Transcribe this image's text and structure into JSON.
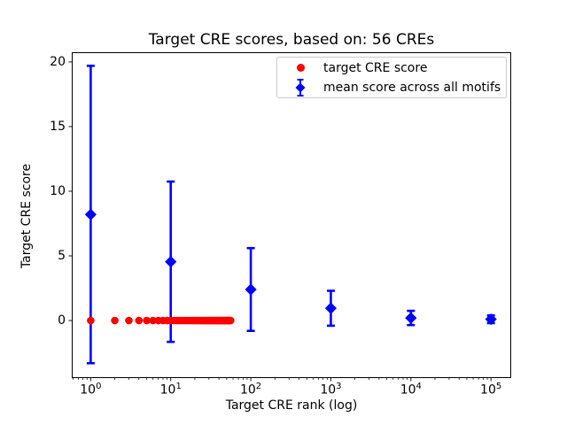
{
  "figure": {
    "title": "Target CRE scores, based on: 56 CREs",
    "x_axis_label": "Target CRE rank (log)",
    "y_axis_label": "Target CRE score"
  },
  "legend": {
    "items": [
      {
        "label": "target CRE score",
        "marker": "circle",
        "color": "#ff0000"
      },
      {
        "label": "mean score across all motifs",
        "marker": "diamond-with-errorbar",
        "color": "#0000ff"
      }
    ]
  },
  "colors": {
    "target_series": "#ff0000",
    "mean_series": "#0000ff",
    "spine": "#000000",
    "legend_border": "#cccccc",
    "background": "#ffffff"
  },
  "chart_data": {
    "type": "scatter",
    "title": "Target CRE scores, based on: 56 CREs",
    "xlabel": "Target CRE rank (log)",
    "ylabel": "Target CRE score",
    "x_scale": "log",
    "xlim": [
      0.58,
      179000
    ],
    "ylim": [
      -4.45,
      20.75
    ],
    "grid": false,
    "legend_position": "upper right inside axes",
    "x_major_ticks": [
      1,
      10,
      100,
      1000,
      10000,
      100000
    ],
    "x_tick_labels": [
      {
        "base": "10",
        "exp": "0"
      },
      {
        "base": "10",
        "exp": "1"
      },
      {
        "base": "10",
        "exp": "2"
      },
      {
        "base": "10",
        "exp": "3"
      },
      {
        "base": "10",
        "exp": "4"
      },
      {
        "base": "10",
        "exp": "5"
      }
    ],
    "y_ticks": [
      0,
      5,
      10,
      15,
      20
    ],
    "y_tick_labels": [
      "0",
      "5",
      "10",
      "15",
      "20"
    ],
    "series": [
      {
        "name": "target CRE score",
        "marker": "circle",
        "color": "#ff0000",
        "x": [
          1,
          2,
          3,
          4,
          5,
          6,
          7,
          8,
          9,
          10,
          11,
          12,
          13,
          14,
          15,
          16,
          17,
          18,
          19,
          20,
          21,
          22,
          23,
          24,
          25,
          26,
          27,
          28,
          29,
          30,
          31,
          32,
          33,
          34,
          35,
          36,
          37,
          38,
          39,
          40,
          41,
          42,
          43,
          44,
          45,
          46,
          47,
          48,
          49,
          50,
          51,
          52,
          53,
          54,
          55,
          56
        ],
        "y": [
          0,
          0,
          0,
          0,
          0,
          0,
          0,
          0,
          0,
          0,
          0,
          0,
          0,
          0,
          0,
          0,
          0,
          0,
          0,
          0,
          0,
          0,
          0,
          0,
          0,
          0,
          0,
          0,
          0,
          0,
          0,
          0,
          0,
          0,
          0,
          0,
          0,
          0,
          0,
          0,
          0,
          0,
          0,
          0,
          0,
          0,
          0,
          0,
          0,
          0,
          0,
          0,
          0,
          0,
          0,
          0
        ]
      },
      {
        "name": "mean score across all motifs",
        "marker": "diamond",
        "color": "#0000ff",
        "x": [
          1,
          10,
          100,
          1000,
          10000,
          100000
        ],
        "y": [
          8.2,
          4.55,
          2.4,
          0.95,
          0.2,
          0.1
        ],
        "yerr": [
          11.5,
          6.2,
          3.2,
          1.35,
          0.55,
          0.3
        ]
      }
    ]
  }
}
